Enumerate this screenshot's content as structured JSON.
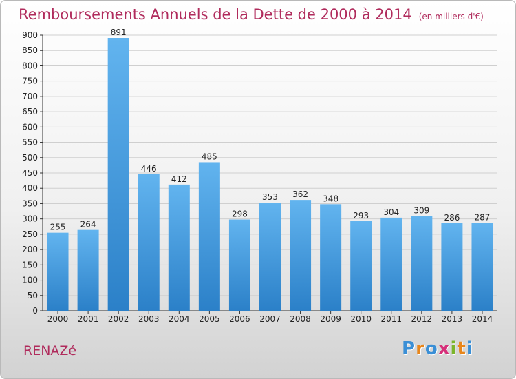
{
  "chart_data": {
    "type": "bar",
    "title": "Remboursements Annuels de la Dette de 2000 à 2014",
    "subtitle": "(en milliers d'€)",
    "categories": [
      "2000",
      "2001",
      "2002",
      "2003",
      "2004",
      "2005",
      "2006",
      "2007",
      "2008",
      "2009",
      "2010",
      "2011",
      "2012",
      "2013",
      "2014"
    ],
    "values": [
      255,
      264,
      891,
      446,
      412,
      485,
      298,
      353,
      362,
      348,
      293,
      304,
      309,
      286,
      287
    ],
    "ylim": [
      0,
      900
    ],
    "yticks": [
      0,
      50,
      100,
      150,
      200,
      250,
      300,
      350,
      400,
      450,
      500,
      550,
      600,
      650,
      700,
      750,
      800,
      850,
      900
    ],
    "grid": true,
    "bar_color": "#4da3e4",
    "xlabel": "",
    "ylabel": ""
  },
  "commune": "RENAZé",
  "brand": {
    "letters": [
      "P",
      "r",
      "o",
      "x",
      "i",
      "t",
      "i"
    ],
    "colors": [
      "#3a8fd6",
      "#e8861b",
      "#3a8fd6",
      "#d6307a",
      "#7bb52b",
      "#e8861b",
      "#3a8fd6"
    ]
  },
  "colors": {
    "title": "#b02b5c",
    "axis": "#333333",
    "grid": "#cfcfcf"
  }
}
